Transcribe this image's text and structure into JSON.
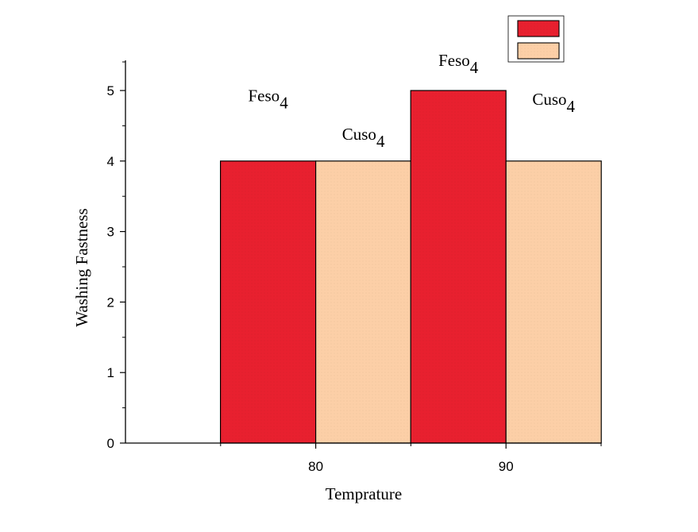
{
  "chart_data": {
    "type": "bar",
    "title": "",
    "xlabel": "Temprature",
    "ylabel": "Washing Fastness",
    "categories": [
      "80",
      "90"
    ],
    "series": [
      {
        "values": [
          4,
          5
        ],
        "color": "#e8202f"
      },
      {
        "values": [
          4,
          4
        ],
        "color": "#fccfa7"
      }
    ],
    "ylim": [
      0,
      5.4
    ],
    "yticks": [
      "0",
      "1",
      "2",
      "3",
      "4",
      "5"
    ],
    "grid": false,
    "legend": {
      "position": "top-right",
      "entries": [
        "",
        ""
      ]
    },
    "annotations": [
      {
        "base": "Feso",
        "sub": "4",
        "category": "80",
        "value": 4.85
      },
      {
        "base": "Cuso",
        "sub": "4",
        "category": "80",
        "value": 4.3
      },
      {
        "base": "Feso",
        "sub": "4",
        "category": "90",
        "value": 5.35
      },
      {
        "base": "Cuso",
        "sub": "4",
        "category": "90",
        "value": 4.8
      }
    ]
  }
}
